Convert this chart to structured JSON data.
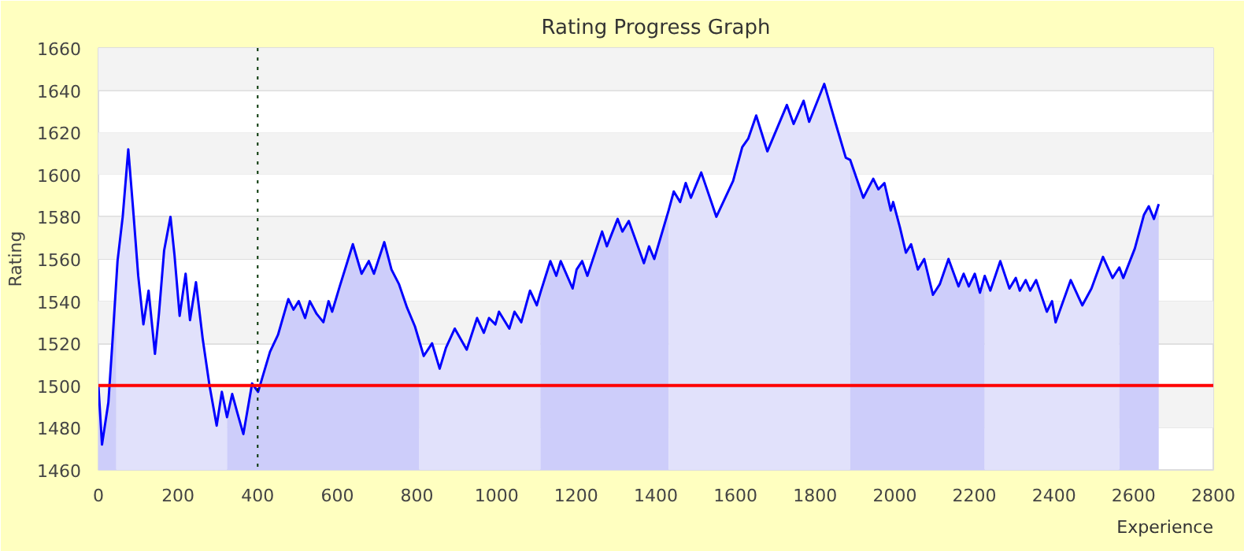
{
  "chart_data": {
    "type": "line",
    "title": "Rating Progress Graph",
    "xlabel": "Experience",
    "ylabel": "Rating",
    "xlim": [
      0,
      2800
    ],
    "xticks": [
      0,
      200,
      400,
      600,
      800,
      1000,
      1200,
      1400,
      1600,
      1800,
      2000,
      2200,
      2400,
      2600,
      2800
    ],
    "ylim": [
      1460,
      1660
    ],
    "yticks": [
      1460,
      1480,
      1500,
      1520,
      1540,
      1560,
      1580,
      1600,
      1620,
      1640,
      1660
    ],
    "grid": "y",
    "line_style": "solid",
    "bands": [
      {
        "axis": "y",
        "from": 1640,
        "to": 1660,
        "color": "#f3f3f3"
      },
      {
        "axis": "y",
        "from": 1600,
        "to": 1620,
        "color": "#f3f3f3"
      },
      {
        "axis": "y",
        "from": 1560,
        "to": 1580,
        "color": "#f3f3f3"
      },
      {
        "axis": "y",
        "from": 1520,
        "to": 1540,
        "color": "#f3f3f3"
      },
      {
        "axis": "y",
        "from": 1480,
        "to": 1500,
        "color": "#f3f3f3"
      }
    ],
    "ref_lines": [
      {
        "axis": "y",
        "value": 1500,
        "color": "#ff0000",
        "line_style": "solid"
      },
      {
        "axis": "x",
        "value": 400,
        "color": "#003300",
        "line_style": "dotted"
      }
    ],
    "series": [
      {
        "type": "area",
        "color": "#cdcdfa",
        "x": [
          0,
          9,
          25,
          35,
          45
        ],
        "values": [
          1500,
          1472,
          1492,
          1520,
          1550
        ]
      },
      {
        "type": "area",
        "color": "#e1e1fb",
        "x": [
          45,
          48,
          61,
          75,
          87,
          100,
          113,
          126,
          142,
          152,
          165,
          181,
          191,
          204,
          219,
          230,
          245,
          262,
          279,
          297,
          310,
          323
        ],
        "values": [
          1550,
          1559,
          1580,
          1612,
          1584,
          1552,
          1529,
          1545,
          1515,
          1534,
          1564,
          1580,
          1562,
          1533,
          1553,
          1531,
          1549,
          1522,
          1500,
          1481,
          1497,
          1485
        ]
      },
      {
        "type": "area",
        "color": "#cdcdfa",
        "x": [
          323,
          336,
          349,
          364,
          386,
          401,
          412,
          431,
          451,
          477,
          490,
          503,
          519,
          531,
          548,
          565,
          578,
          587,
          606,
          639,
          661,
          679,
          692,
          718,
          736,
          755,
          775,
          795,
          806
        ],
        "values": [
          1485,
          1496,
          1487,
          1477,
          1501,
          1497,
          1504,
          1516,
          1524,
          1541,
          1536,
          1540,
          1532,
          1540,
          1534,
          1530,
          1540,
          1535,
          1547,
          1567,
          1553,
          1559,
          1553,
          1568,
          1555,
          1548,
          1537,
          1528,
          1521
        ]
      },
      {
        "type": "area",
        "color": "#e1e1fb",
        "x": [
          806,
          817,
          838,
          857,
          873,
          895,
          925,
          951,
          968,
          981,
          997,
          1006,
          1032,
          1045,
          1062,
          1084,
          1101,
          1110
        ],
        "values": [
          1521,
          1514,
          1520,
          1508,
          1518,
          1527,
          1517,
          1532,
          1525,
          1532,
          1529,
          1535,
          1527,
          1535,
          1530,
          1545,
          1538,
          1544
        ]
      },
      {
        "type": "area",
        "color": "#cdcdfa",
        "x": [
          1110,
          1135,
          1150,
          1161,
          1191,
          1201,
          1215,
          1228,
          1265,
          1277,
          1304,
          1316,
          1332,
          1370,
          1383,
          1396,
          1432
        ],
        "values": [
          1544,
          1559,
          1552,
          1559,
          1546,
          1555,
          1559,
          1552,
          1573,
          1566,
          1579,
          1573,
          1578,
          1558,
          1566,
          1560,
          1583
        ]
      },
      {
        "type": "area",
        "color": "#e1e1fb",
        "x": [
          1432,
          1445,
          1461,
          1475,
          1488,
          1514,
          1552,
          1594,
          1617,
          1632,
          1652,
          1680,
          1729,
          1746,
          1771,
          1785,
          1823,
          1852,
          1877,
          1888
        ],
        "values": [
          1583,
          1592,
          1587,
          1596,
          1589,
          1601,
          1580,
          1597,
          1613,
          1617,
          1628,
          1611,
          1633,
          1624,
          1635,
          1625,
          1643,
          1624,
          1608,
          1607
        ]
      },
      {
        "type": "area",
        "color": "#cdcdfa",
        "x": [
          1888,
          1921,
          1946,
          1959,
          1974,
          1990,
          1996,
          2013,
          2028,
          2041,
          2058,
          2074,
          2096,
          2113,
          2135,
          2160,
          2173,
          2186,
          2201,
          2214,
          2226
        ],
        "values": [
          1607,
          1589,
          1598,
          1593,
          1596,
          1583,
          1587,
          1575,
          1563,
          1567,
          1555,
          1560,
          1543,
          1548,
          1560,
          1547,
          1553,
          1547,
          1553,
          1544,
          1552
        ]
      },
      {
        "type": "area",
        "color": "#e1e1fb",
        "x": [
          2226,
          2240,
          2265,
          2288,
          2304,
          2314,
          2329,
          2340,
          2355,
          2382,
          2395,
          2404,
          2442,
          2471,
          2494,
          2523,
          2547,
          2564
        ],
        "values": [
          1552,
          1545,
          1559,
          1546,
          1551,
          1545,
          1550,
          1545,
          1550,
          1535,
          1540,
          1530,
          1550,
          1538,
          1546,
          1561,
          1551,
          1556
        ]
      },
      {
        "type": "area",
        "color": "#cdcdfa",
        "x": [
          2564,
          2574,
          2603,
          2626,
          2638,
          2651,
          2663
        ],
        "values": [
          1556,
          1551,
          1565,
          1581,
          1585,
          1579,
          1586
        ]
      },
      {
        "color": "#0000ff",
        "x": [
          0,
          9,
          25,
          35,
          45,
          48,
          61,
          75,
          87,
          100,
          113,
          126,
          142,
          152,
          165,
          181,
          191,
          204,
          219,
          230,
          245,
          262,
          279,
          297,
          310,
          323,
          336,
          349,
          364,
          386,
          401,
          412,
          431,
          451,
          477,
          490,
          503,
          519,
          531,
          548,
          565,
          578,
          587,
          606,
          639,
          661,
          679,
          692,
          718,
          736,
          755,
          775,
          795,
          806,
          817,
          838,
          857,
          873,
          895,
          925,
          951,
          968,
          981,
          997,
          1006,
          1032,
          1045,
          1062,
          1084,
          1101,
          1110,
          1135,
          1150,
          1161,
          1191,
          1201,
          1215,
          1228,
          1265,
          1277,
          1304,
          1316,
          1332,
          1370,
          1383,
          1396,
          1432,
          1445,
          1461,
          1475,
          1488,
          1514,
          1552,
          1594,
          1617,
          1632,
          1652,
          1680,
          1729,
          1746,
          1771,
          1785,
          1823,
          1852,
          1877,
          1888,
          1921,
          1946,
          1959,
          1974,
          1990,
          1996,
          2013,
          2028,
          2041,
          2058,
          2074,
          2096,
          2113,
          2135,
          2160,
          2173,
          2186,
          2201,
          2214,
          2226,
          2240,
          2265,
          2288,
          2304,
          2314,
          2329,
          2340,
          2355,
          2382,
          2395,
          2404,
          2442,
          2471,
          2494,
          2523,
          2547,
          2564,
          2574,
          2603,
          2626,
          2638,
          2651,
          2663
        ],
        "values": [
          1500,
          1472,
          1492,
          1520,
          1550,
          1559,
          1580,
          1612,
          1584,
          1552,
          1529,
          1545,
          1515,
          1534,
          1564,
          1580,
          1562,
          1533,
          1553,
          1531,
          1549,
          1522,
          1500,
          1481,
          1497,
          1485,
          1496,
          1487,
          1477,
          1501,
          1497,
          1504,
          1516,
          1524,
          1541,
          1536,
          1540,
          1532,
          1540,
          1534,
          1530,
          1540,
          1535,
          1547,
          1567,
          1553,
          1559,
          1553,
          1568,
          1555,
          1548,
          1537,
          1528,
          1521,
          1514,
          1520,
          1508,
          1518,
          1527,
          1517,
          1532,
          1525,
          1532,
          1529,
          1535,
          1527,
          1535,
          1530,
          1545,
          1538,
          1544,
          1559,
          1552,
          1559,
          1546,
          1555,
          1559,
          1552,
          1573,
          1566,
          1579,
          1573,
          1578,
          1558,
          1566,
          1560,
          1583,
          1592,
          1587,
          1596,
          1589,
          1601,
          1580,
          1597,
          1613,
          1617,
          1628,
          1611,
          1633,
          1624,
          1635,
          1625,
          1643,
          1624,
          1608,
          1607,
          1589,
          1598,
          1593,
          1596,
          1583,
          1587,
          1575,
          1563,
          1567,
          1555,
          1560,
          1543,
          1548,
          1560,
          1547,
          1553,
          1547,
          1553,
          1544,
          1552,
          1545,
          1559,
          1546,
          1551,
          1545,
          1550,
          1545,
          1550,
          1535,
          1540,
          1530,
          1550,
          1538,
          1546,
          1561,
          1551,
          1556,
          1551,
          1565,
          1581,
          1585,
          1579,
          1586
        ]
      }
    ]
  }
}
